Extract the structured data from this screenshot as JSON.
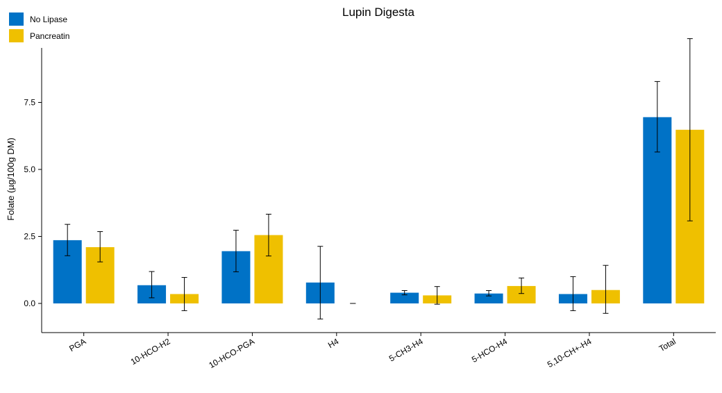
{
  "chart_data": {
    "type": "bar",
    "title": "Lupin Digesta",
    "xlabel": "",
    "ylabel": "Folate (µg/100g DM)",
    "ylim": [
      -1.1,
      9.8
    ],
    "yticks": [
      0.0,
      2.5,
      5.0,
      7.5
    ],
    "ytick_labels": [
      "0.0",
      "2.5",
      "5.0",
      "7.5"
    ],
    "grid": false,
    "legend_position": "top-left",
    "categories": [
      "PGA",
      "10-HCO-H2",
      "10-HCO-PGA",
      "H4",
      "5-CH3-H4",
      "5-HCO-H4",
      "5,10-CH+-H4",
      "Total"
    ],
    "series": [
      {
        "name": "No Lipase",
        "color": "#0072C6",
        "values": [
          2.36,
          0.68,
          1.95,
          0.78,
          0.4,
          0.37,
          0.35,
          6.95
        ],
        "err_low": [
          1.78,
          0.21,
          1.18,
          -0.58,
          0.32,
          0.28,
          -0.27,
          5.65
        ],
        "err_high": [
          2.95,
          1.19,
          2.73,
          2.13,
          0.48,
          0.48,
          1.0,
          8.28
        ]
      },
      {
        "name": "Pancreatin",
        "color": "#EFC000",
        "values": [
          2.1,
          0.35,
          2.55,
          0.0,
          0.3,
          0.65,
          0.5,
          6.48
        ],
        "err_low": [
          1.55,
          -0.27,
          1.77,
          0.0,
          -0.03,
          0.37,
          -0.37,
          3.08
        ],
        "err_high": [
          2.68,
          0.97,
          3.33,
          0.0,
          0.63,
          0.95,
          1.42,
          9.88
        ]
      }
    ]
  }
}
